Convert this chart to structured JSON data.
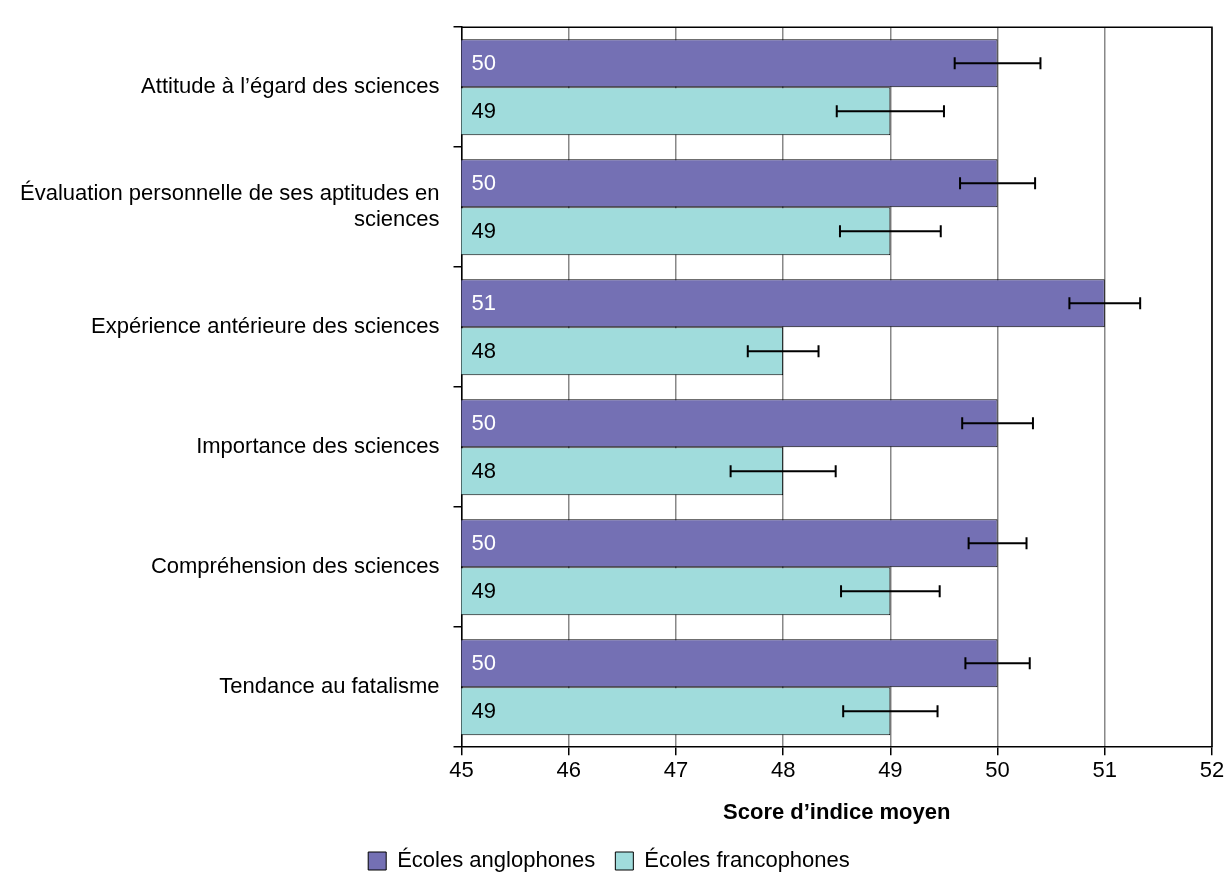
{
  "chart_data": {
    "type": "bar",
    "orientation": "horizontal",
    "xlabel": "Score d’indice moyen",
    "categories": [
      "Attitude à l’égard des sciences",
      "Évaluation personnelle de ses aptitudes en sciences",
      "Expérience antérieure des sciences",
      "Importance des sciences",
      "Compréhension des sciences",
      "Tendance au fatalisme"
    ],
    "series": [
      {
        "name": "Écoles anglophones",
        "color": "#7470b4",
        "values": [
          50,
          50,
          51,
          50,
          50,
          50
        ],
        "errors": [
          0.4,
          0.35,
          0.33,
          0.33,
          0.27,
          0.3
        ]
      },
      {
        "name": "Écoles francophones",
        "color": "#a0dcdc",
        "values": [
          49,
          49,
          48,
          48,
          49,
          49
        ],
        "errors": [
          0.5,
          0.47,
          0.33,
          0.49,
          0.46,
          0.44
        ]
      }
    ],
    "xlim": [
      45,
      52
    ],
    "xticks": [
      45,
      46,
      47,
      48,
      49,
      50,
      51,
      52
    ],
    "grid": "x",
    "legend": "bottom",
    "data_labels": true
  }
}
